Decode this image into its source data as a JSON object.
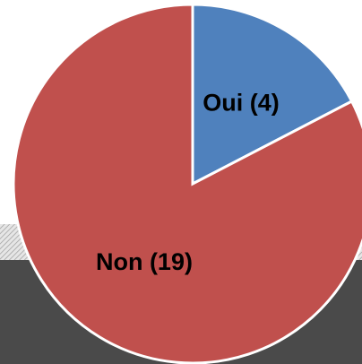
{
  "chart_data": {
    "type": "pie",
    "values": [
      4,
      19
    ],
    "value_labels": [
      "Oui (4)",
      "Non (19)"
    ],
    "colors": [
      "#4f81bd",
      "#c0504d"
    ]
  }
}
